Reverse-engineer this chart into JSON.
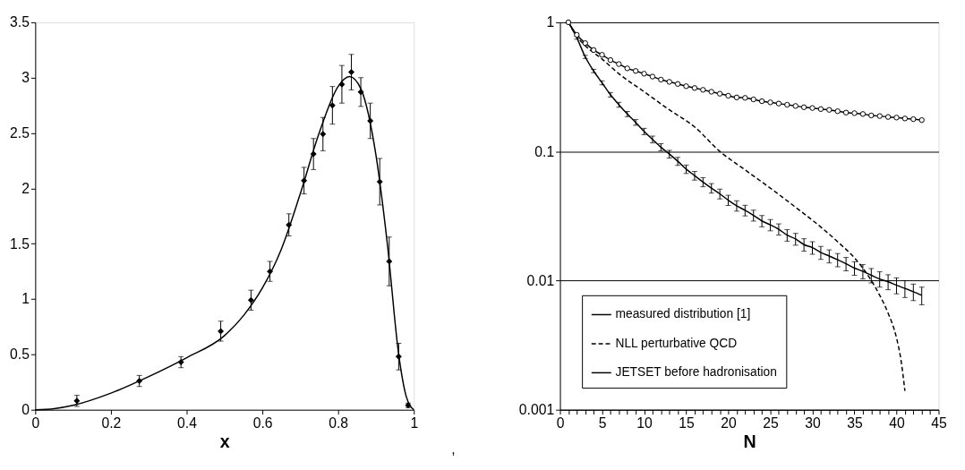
{
  "chart_data": [
    {
      "type": "scatter",
      "xlabel": "x",
      "xlim": [
        0,
        1
      ],
      "xticks": [
        0,
        0.2,
        0.4,
        0.6,
        0.8,
        1
      ],
      "ylim": [
        0,
        3.5
      ],
      "yticks": [
        0,
        0.5,
        1,
        1.5,
        2,
        2.5,
        3,
        3.5
      ],
      "grid": false,
      "legend": false,
      "annotations": [
        ","
      ],
      "series": [
        {
          "type": "scatter",
          "marker": "diamond",
          "color": "#000000",
          "x": [
            0.11,
            0.275,
            0.385,
            0.49,
            0.57,
            0.62,
            0.67,
            0.71,
            0.735,
            0.76,
            0.785,
            0.81,
            0.835,
            0.86,
            0.885,
            0.91,
            0.935,
            0.96,
            0.985
          ],
          "values": [
            0.08,
            0.26,
            0.43,
            0.71,
            0.99,
            1.25,
            1.67,
            2.07,
            2.31,
            2.49,
            2.75,
            2.94,
            3.05,
            2.87,
            2.61,
            2.06,
            1.34,
            0.48,
            0.04
          ],
          "errors": [
            0.05,
            0.05,
            0.05,
            0.09,
            0.09,
            0.09,
            0.1,
            0.12,
            0.14,
            0.15,
            0.17,
            0.17,
            0.16,
            0.13,
            0.16,
            0.21,
            0.22,
            0.12,
            0.02
          ]
        },
        {
          "type": "line",
          "marker": "none",
          "line_style": "solid",
          "color": "#000000",
          "x": [
            0,
            0.05,
            0.1,
            0.2,
            0.3,
            0.4,
            0.5,
            0.55,
            0.6,
            0.65,
            0.7,
            0.75,
            0.8,
            0.83,
            0.86,
            0.9,
            0.93,
            0.96,
            0.98,
            1.0
          ],
          "values": [
            0,
            0.01,
            0.04,
            0.15,
            0.3,
            0.47,
            0.67,
            0.85,
            1.1,
            1.45,
            1.95,
            2.5,
            2.92,
            3.01,
            2.9,
            2.3,
            1.5,
            0.5,
            0.12,
            0
          ]
        }
      ]
    },
    {
      "type": "line",
      "xlabel": "N",
      "log": "y",
      "xlim": [
        0,
        45
      ],
      "xticks": [
        0,
        {
          "value": 1,
          "label": null
        },
        {
          "value": 2,
          "label": null
        },
        {
          "value": 3,
          "label": null
        },
        {
          "value": 4,
          "label": null
        },
        5,
        {
          "value": 6,
          "label": null
        },
        {
          "value": 7,
          "label": null
        },
        {
          "value": 8,
          "label": null
        },
        {
          "value": 9,
          "label": null
        },
        10,
        {
          "value": 11,
          "label": null
        },
        {
          "value": 12,
          "label": null
        },
        {
          "value": 13,
          "label": null
        },
        {
          "value": 14,
          "label": null
        },
        15,
        {
          "value": 16,
          "label": null
        },
        {
          "value": 17,
          "label": null
        },
        {
          "value": 18,
          "label": null
        },
        {
          "value": 19,
          "label": null
        },
        20,
        {
          "value": 21,
          "label": null
        },
        {
          "value": 22,
          "label": null
        },
        {
          "value": 23,
          "label": null
        },
        {
          "value": 24,
          "label": null
        },
        25,
        {
          "value": 26,
          "label": null
        },
        {
          "value": 27,
          "label": null
        },
        {
          "value": 28,
          "label": null
        },
        {
          "value": 29,
          "label": null
        },
        30,
        {
          "value": 31,
          "label": null
        },
        {
          "value": 32,
          "label": null
        },
        {
          "value": 33,
          "label": null
        },
        {
          "value": 34,
          "label": null
        },
        35,
        {
          "value": 36,
          "label": null
        },
        {
          "value": 37,
          "label": null
        },
        {
          "value": 38,
          "label": null
        },
        {
          "value": 39,
          "label": null
        },
        40,
        {
          "value": 41,
          "label": null
        },
        {
          "value": 42,
          "label": null
        },
        {
          "value": 43,
          "label": null
        },
        {
          "value": 44,
          "label": null
        },
        45
      ],
      "ylim": [
        0.001,
        1
      ],
      "yticks": [
        0.001,
        0.01,
        0.1,
        1
      ],
      "grid": "y",
      "legend": "bottom left",
      "series": [
        {
          "name": "measured distribution [1]",
          "line_style": "solid",
          "marker": "none",
          "color": "#000000",
          "x": [
            1,
            2,
            3,
            4,
            5,
            6,
            7,
            8,
            9,
            10,
            11,
            12,
            13,
            14,
            15,
            16,
            17,
            18,
            19,
            20,
            21,
            22,
            23,
            24,
            25,
            26,
            27,
            28,
            29,
            30,
            31,
            32,
            33,
            34,
            35,
            36,
            37,
            38,
            39,
            40,
            41,
            42,
            43
          ],
          "values": [
            1,
            0.76,
            0.54,
            0.42,
            0.34,
            0.275,
            0.23,
            0.195,
            0.168,
            0.143,
            0.124,
            0.108,
            0.0955,
            0.084,
            0.073,
            0.065,
            0.058,
            0.052,
            0.047,
            0.042,
            0.038,
            0.035,
            0.032,
            0.029,
            0.027,
            0.025,
            0.0225,
            0.021,
            0.019,
            0.018,
            0.0165,
            0.0155,
            0.0145,
            0.0135,
            0.0125,
            0.0118,
            0.011,
            0.0103,
            0.0098,
            0.0092,
            0.0087,
            0.0082,
            0.0077
          ],
          "errors": [
            null,
            0.02,
            0.015,
            0.013,
            0.012,
            0.011,
            0.01,
            0.009,
            0.0085,
            0.008,
            0.0075,
            0.007,
            0.0065,
            0.006,
            0.0055,
            0.005,
            0.0047,
            0.0044,
            0.0041,
            0.0038,
            0.0035,
            0.0033,
            0.0031,
            0.0029,
            0.0027,
            0.0025,
            0.0023,
            0.0022,
            0.0021,
            0.002,
            0.0019,
            0.0018,
            0.0017,
            0.0016,
            0.0015,
            0.0015,
            0.0014,
            0.0014,
            0.0013,
            0.0013,
            0.0013,
            0.0012,
            0.0012
          ]
        },
        {
          "name": "NLL perturbative QCD",
          "line_style": "dashed",
          "marker": "none",
          "color": "#000000",
          "x": [
            1,
            2,
            3,
            5,
            7,
            10,
            13,
            16,
            19,
            22,
            25,
            28,
            31,
            33,
            35,
            36,
            37,
            38,
            39,
            40,
            40.5,
            41
          ],
          "values": [
            1,
            0.78,
            0.66,
            0.52,
            0.4,
            0.29,
            0.21,
            0.155,
            0.1,
            0.072,
            0.052,
            0.037,
            0.026,
            0.02,
            0.015,
            0.0125,
            0.01,
            0.0077,
            0.0056,
            0.0036,
            0.0025,
            0.0014
          ]
        },
        {
          "name": "JETSET before hadronisation",
          "line_style": "solid",
          "marker": "circle",
          "color": "#000000",
          "x": [
            1,
            2,
            3,
            4,
            5,
            6,
            7,
            8,
            9,
            10,
            11,
            12,
            13,
            14,
            15,
            16,
            17,
            18,
            19,
            20,
            21,
            22,
            23,
            24,
            25,
            26,
            27,
            28,
            29,
            30,
            31,
            32,
            33,
            34,
            35,
            36,
            37,
            38,
            39,
            40,
            41,
            42,
            43
          ],
          "values": [
            1,
            0.8,
            0.69,
            0.61,
            0.56,
            0.51,
            0.475,
            0.44,
            0.42,
            0.4,
            0.38,
            0.36,
            0.346,
            0.333,
            0.32,
            0.31,
            0.3,
            0.29,
            0.28,
            0.27,
            0.262,
            0.26,
            0.253,
            0.245,
            0.24,
            0.235,
            0.23,
            0.225,
            0.22,
            0.217,
            0.213,
            0.21,
            0.205,
            0.2,
            0.198,
            0.195,
            0.19,
            0.188,
            0.185,
            0.183,
            0.18,
            0.178,
            0.175
          ]
        }
      ]
    }
  ]
}
